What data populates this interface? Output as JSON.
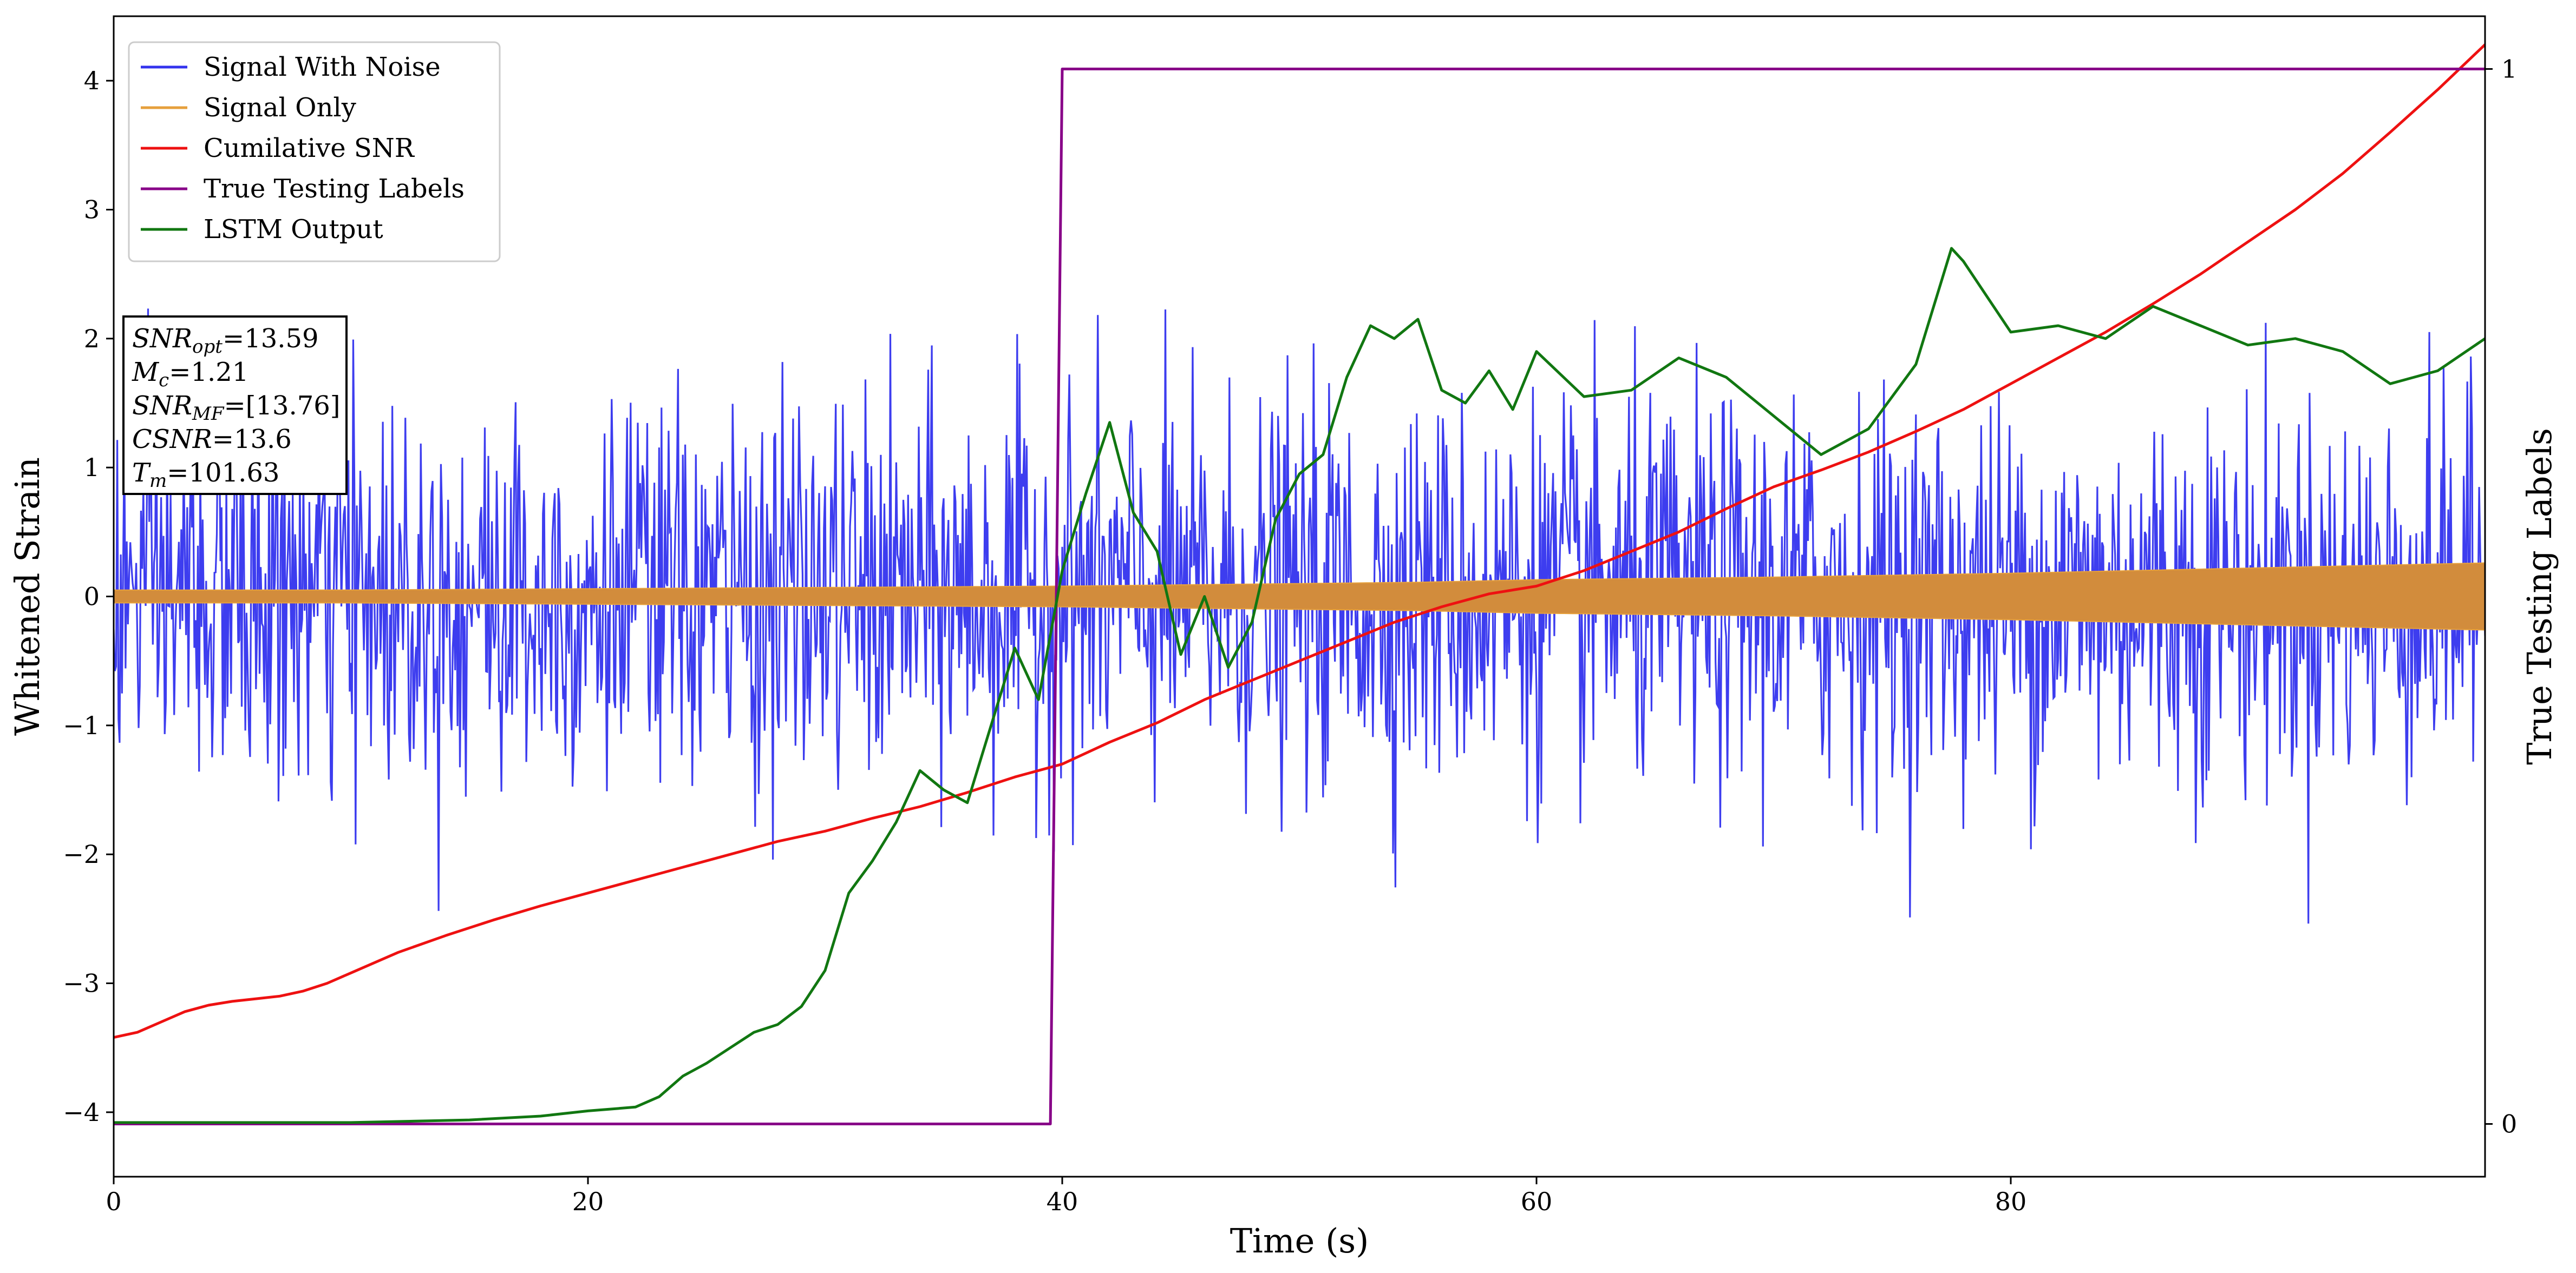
{
  "chart_data": {
    "type": "line",
    "title": "",
    "xlabel": "Time (s)",
    "ylabel": "Whitened Strain",
    "y2label": "True Testing Labels",
    "xlim": [
      0,
      100
    ],
    "ylim": [
      -4.5,
      4.5
    ],
    "y2lim": [
      -0.05,
      1.05
    ],
    "grid": false,
    "legend_position": "top-left",
    "x_ticks": [
      0,
      20,
      40,
      60,
      80
    ],
    "x_tick_labels": [
      "0",
      "20",
      "40",
      "60",
      "80"
    ],
    "y_ticks": [
      -4,
      -3,
      -2,
      -1,
      0,
      1,
      2,
      3,
      4
    ],
    "y_tick_labels": [
      "−4",
      "−3",
      "−2",
      "−1",
      "0",
      "1",
      "2",
      "3",
      "4"
    ],
    "y2_ticks": [
      0,
      1
    ],
    "y2_tick_labels": [
      "0",
      "1"
    ],
    "annotation": [
      {
        "label": "SNR",
        "sub": "opt",
        "value": "=13.59"
      },
      {
        "label": "M",
        "sub": "c",
        "value": "=1.21"
      },
      {
        "label": "SNR",
        "sub": "MF",
        "value": "=[13.76]"
      },
      {
        "label": "CSNR",
        "sub": "",
        "value": "=13.6"
      },
      {
        "label": "T",
        "sub": "m",
        "value": "=101.63"
      }
    ],
    "series": [
      {
        "name": "Signal With Noise",
        "color": "#3333ee",
        "axis": "left",
        "style": "noise",
        "noise_std": 0.75,
        "sample_interval": 0.05,
        "max_abs": 4.1
      },
      {
        "name": "Signal Only",
        "color": "#e6a03c",
        "fill_color": "#d28c3c",
        "axis": "left",
        "style": "envelope",
        "x": [
          0,
          10,
          20,
          30,
          40,
          50,
          55,
          60,
          70,
          80,
          90,
          100
        ],
        "amplitude": [
          0.05,
          0.05,
          0.06,
          0.07,
          0.08,
          0.1,
          0.11,
          0.13,
          0.15,
          0.18,
          0.22,
          0.26
        ]
      },
      {
        "name": "Cumilative SNR",
        "color": "#ee1111",
        "axis": "left",
        "x": [
          0,
          1,
          2,
          3,
          4,
          5,
          6,
          7,
          8,
          9,
          10,
          12,
          14,
          16,
          18,
          20,
          22,
          24,
          26,
          28,
          30,
          32,
          34,
          36,
          38,
          40,
          42,
          44,
          46,
          48,
          50,
          52,
          54,
          56,
          58,
          60,
          62,
          64,
          66,
          68,
          70,
          72,
          74,
          76,
          78,
          80,
          82,
          84,
          86,
          88,
          90,
          92,
          94,
          96,
          98,
          100
        ],
        "y": [
          -3.42,
          -3.38,
          -3.3,
          -3.22,
          -3.17,
          -3.14,
          -3.12,
          -3.1,
          -3.06,
          -3.0,
          -2.92,
          -2.76,
          -2.63,
          -2.51,
          -2.4,
          -2.3,
          -2.2,
          -2.1,
          -2.0,
          -1.9,
          -1.82,
          -1.72,
          -1.63,
          -1.52,
          -1.4,
          -1.3,
          -1.13,
          -0.98,
          -0.8,
          -0.65,
          -0.5,
          -0.35,
          -0.2,
          -0.08,
          0.02,
          0.08,
          0.2,
          0.35,
          0.5,
          0.68,
          0.85,
          0.98,
          1.12,
          1.28,
          1.45,
          1.65,
          1.85,
          2.05,
          2.27,
          2.5,
          2.75,
          3.0,
          3.28,
          3.6,
          3.93,
          4.28
        ]
      },
      {
        "name": "True Testing Labels",
        "color": "#880088",
        "axis": "right",
        "x": [
          0,
          39.5,
          40,
          100
        ],
        "y": [
          0,
          0,
          1,
          1
        ]
      },
      {
        "name": "LSTM Output",
        "color": "#117711",
        "axis": "left",
        "x": [
          0,
          10,
          15,
          18,
          20,
          22,
          23,
          24,
          25,
          26,
          27,
          28,
          29,
          30,
          31,
          32,
          33,
          34,
          35,
          36,
          37,
          38,
          39,
          40,
          41,
          42,
          43,
          44,
          45,
          46,
          47,
          48,
          49,
          50,
          51,
          52,
          53,
          54,
          55,
          56,
          57,
          58,
          59,
          60,
          62,
          64,
          66,
          68,
          70,
          72,
          74,
          76,
          77.5,
          78,
          80,
          82,
          84,
          86,
          88,
          90,
          92,
          94,
          96,
          98,
          100
        ],
        "y": [
          -4.08,
          -4.08,
          -4.06,
          -4.03,
          -3.99,
          -3.96,
          -3.88,
          -3.72,
          -3.62,
          -3.5,
          -3.38,
          -3.32,
          -3.18,
          -2.9,
          -2.3,
          -2.05,
          -1.75,
          -1.35,
          -1.5,
          -1.6,
          -1.0,
          -0.4,
          -0.8,
          0.2,
          0.8,
          1.35,
          0.65,
          0.35,
          -0.45,
          0.0,
          -0.55,
          -0.2,
          0.6,
          0.95,
          1.1,
          1.7,
          2.1,
          2.0,
          2.15,
          1.6,
          1.5,
          1.75,
          1.45,
          1.9,
          1.55,
          1.6,
          1.85,
          1.7,
          1.4,
          1.1,
          1.3,
          1.8,
          2.7,
          2.6,
          2.05,
          2.1,
          2.0,
          2.25,
          2.1,
          1.95,
          2.0,
          1.9,
          1.65,
          1.75,
          2.0
        ]
      }
    ]
  }
}
